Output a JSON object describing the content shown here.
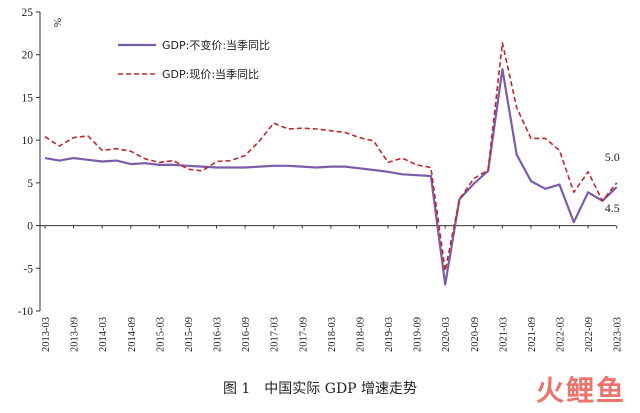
{
  "caption": "图 1　中国实际 GDP 增速走势",
  "watermark": "火鲤鱼",
  "chart_data": {
    "type": "line",
    "unit_label": "%",
    "ylim": [
      -10,
      25
    ],
    "yticks": [
      -10,
      -5,
      0,
      5,
      10,
      15,
      20,
      25
    ],
    "x": [
      "2013-03",
      "2013-06",
      "2013-09",
      "2013-12",
      "2014-03",
      "2014-06",
      "2014-09",
      "2014-12",
      "2015-03",
      "2015-06",
      "2015-09",
      "2015-12",
      "2016-03",
      "2016-06",
      "2016-09",
      "2016-12",
      "2017-03",
      "2017-06",
      "2017-09",
      "2017-12",
      "2018-03",
      "2018-06",
      "2018-09",
      "2018-12",
      "2019-03",
      "2019-06",
      "2019-09",
      "2019-12",
      "2020-03",
      "2020-06",
      "2020-09",
      "2020-12",
      "2021-03",
      "2021-06",
      "2021-09",
      "2021-12",
      "2022-03",
      "2022-06",
      "2022-09",
      "2022-12",
      "2023-03"
    ],
    "x_tick_labels": [
      "2013-03",
      "2013-09",
      "2014-03",
      "2014-09",
      "2015-03",
      "2015-09",
      "2016-03",
      "2016-09",
      "2017-03",
      "2017-09",
      "2018-03",
      "2018-09",
      "2019-03",
      "2019-09",
      "2020-03",
      "2020-09",
      "2021-03",
      "2021-09",
      "2022-03",
      "2022-09",
      "2023-03"
    ],
    "legend_position": "top-left",
    "grid": false,
    "series": [
      {
        "name": "GDP:不变价:当季同比",
        "style": "solid",
        "color": "#7b5ca8",
        "values": [
          7.9,
          7.6,
          7.9,
          7.7,
          7.5,
          7.6,
          7.2,
          7.3,
          7.1,
          7.1,
          7.0,
          6.9,
          6.8,
          6.8,
          6.8,
          6.9,
          7.0,
          7.0,
          6.9,
          6.8,
          6.9,
          6.9,
          6.7,
          6.5,
          6.3,
          6.0,
          5.9,
          5.8,
          -6.9,
          3.1,
          4.9,
          6.4,
          18.3,
          8.3,
          5.2,
          4.3,
          4.8,
          0.4,
          3.9,
          2.9,
          4.5
        ]
      },
      {
        "name": "GDP:现价:当季同比",
        "style": "dashed",
        "color": "#c0282d",
        "values": [
          10.4,
          9.3,
          10.3,
          10.5,
          8.8,
          9.0,
          8.7,
          7.8,
          7.4,
          7.6,
          6.6,
          6.4,
          7.5,
          7.6,
          8.2,
          9.9,
          12.0,
          11.3,
          11.4,
          11.3,
          11.1,
          10.9,
          10.3,
          9.9,
          7.4,
          7.9,
          7.1,
          6.8,
          -5.3,
          3.1,
          5.5,
          6.5,
          21.4,
          13.8,
          10.2,
          10.2,
          8.8,
          3.9,
          6.3,
          2.9,
          5.0
        ]
      }
    ],
    "annotations": [
      "5.0",
      "4.5"
    ]
  }
}
